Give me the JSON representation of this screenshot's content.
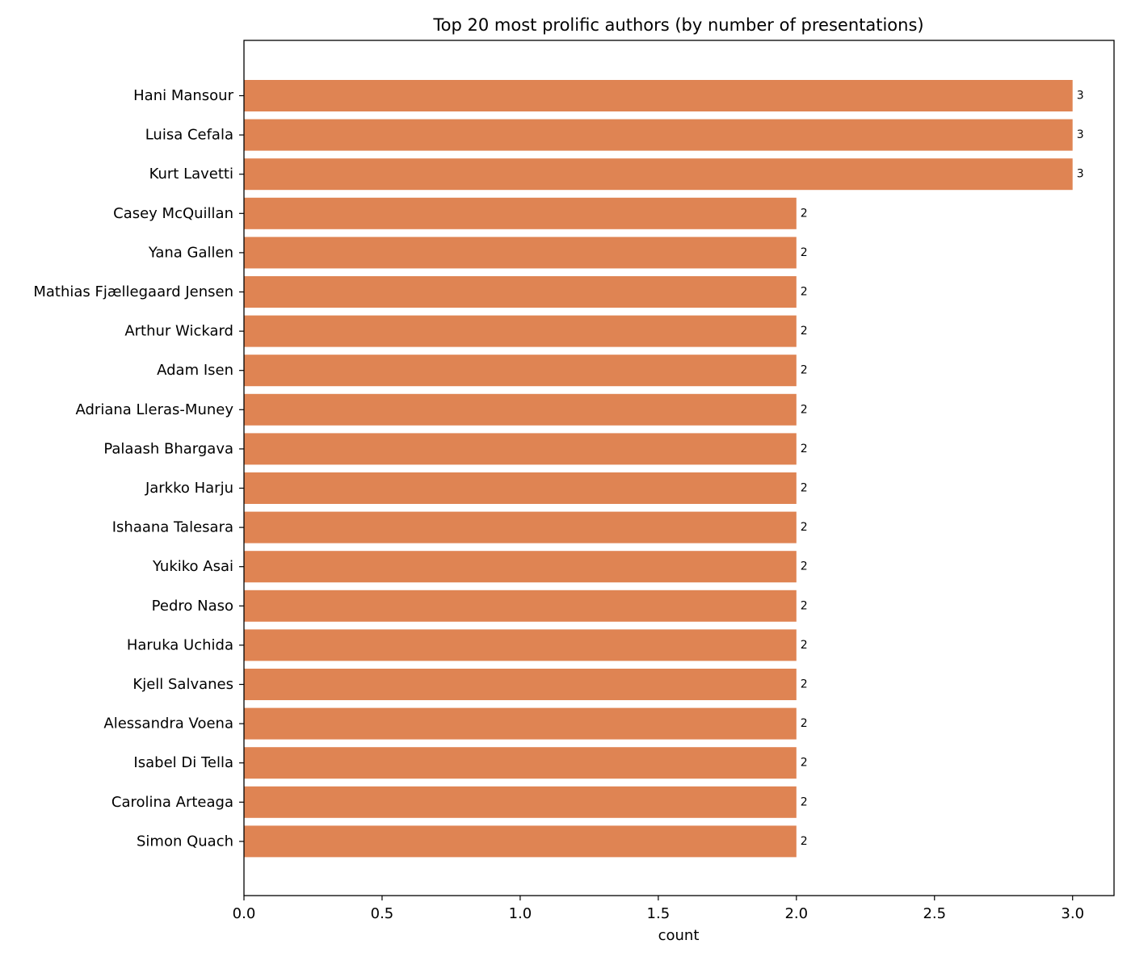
{
  "chart_data": {
    "type": "bar",
    "orientation": "horizontal",
    "title": "Top 20 most prolific authors (by number of presentations)",
    "xlabel": "count",
    "ylabel": "",
    "xlim": [
      0,
      3.15
    ],
    "xticks": [
      "0.0",
      "0.5",
      "1.0",
      "1.5",
      "2.0",
      "2.5",
      "3.0"
    ],
    "xtick_values": [
      0,
      0.5,
      1.0,
      1.5,
      2.0,
      2.5,
      3.0
    ],
    "bar_color": "#DF8453",
    "grid": false,
    "categories": [
      "Hani Mansour",
      "Luisa Cefala",
      "Kurt Lavetti",
      "Casey McQuillan",
      "Yana Gallen",
      "Mathias Fjællegaard Jensen",
      "Arthur Wickard",
      "Adam Isen",
      "Adriana Lleras-Muney",
      "Palaash Bhargava",
      "Jarkko Harju",
      "Ishaana Talesara",
      "Yukiko Asai",
      "Pedro Naso",
      "Haruka Uchida",
      "Kjell Salvanes",
      "Alessandra Voena",
      "Isabel Di Tella",
      "Carolina Arteaga",
      "Simon Quach"
    ],
    "values": [
      3,
      3,
      3,
      2,
      2,
      2,
      2,
      2,
      2,
      2,
      2,
      2,
      2,
      2,
      2,
      2,
      2,
      2,
      2,
      2
    ],
    "data_labels": [
      "3",
      "3",
      "3",
      "2",
      "2",
      "2",
      "2",
      "2",
      "2",
      "2",
      "2",
      "2",
      "2",
      "2",
      "2",
      "2",
      "2",
      "2",
      "2",
      "2"
    ]
  }
}
